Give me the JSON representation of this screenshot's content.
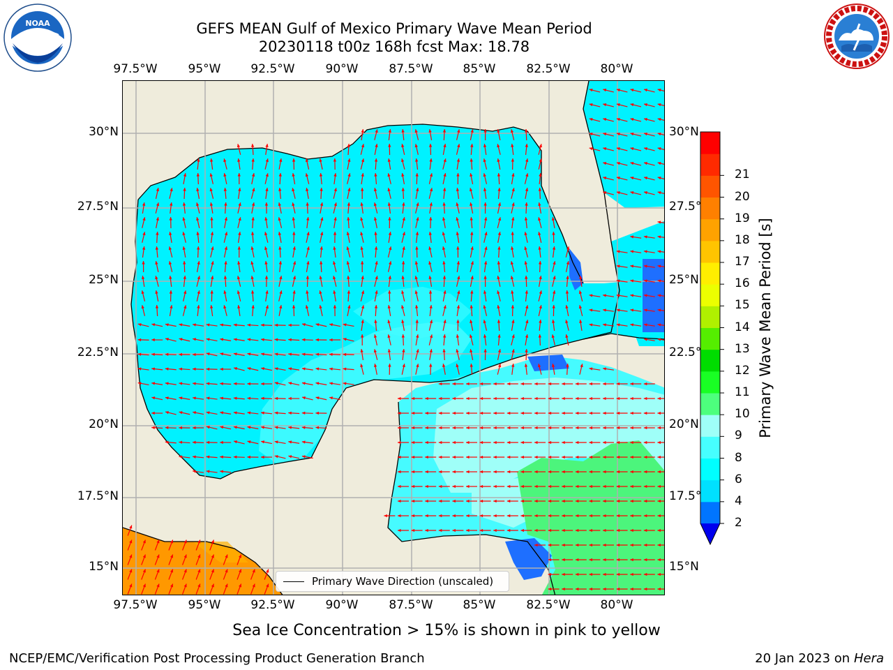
{
  "title_line1": "GEFS MEAN Gulf of Mexico Primary Wave Mean Period",
  "title_line2": "20230118 t00z 168h fcst   Max: 18.78",
  "lon_labels": [
    "97.5°W",
    "95°W",
    "92.5°W",
    "90°W",
    "87.5°W",
    "85°W",
    "82.5°W",
    "80°W"
  ],
  "lat_labels": [
    "30°N",
    "27.5°N",
    "25°N",
    "22.5°N",
    "20°N",
    "17.5°N",
    "15°N"
  ],
  "colorbar": {
    "label": "Primary Wave Mean Period [s]",
    "ticks": [
      "2",
      "4",
      "6",
      "8",
      "9",
      "10",
      "11",
      "12",
      "13",
      "14",
      "15",
      "16",
      "17",
      "18",
      "19",
      "20",
      "21"
    ],
    "colors": [
      "#0075ff",
      "#00e0ff",
      "#00ffff",
      "#46ffff",
      "#9ffff8",
      "#4dff7d",
      "#19ff24",
      "#00dd00",
      "#55ee00",
      "#b0f000",
      "#ecff00",
      "#ffee00",
      "#ffc400",
      "#ffa200",
      "#ff8000",
      "#ff5500",
      "#ff2a00",
      "#ff0000"
    ],
    "extend_min_color": "#0000ee"
  },
  "legend_text": "Primary Wave Direction (unscaled)",
  "footer_note": "Sea Ice Concentration > 15% is shown in pink to yellow",
  "credit_left": "NCEP/EMC/Verification Post Processing Product Generation Branch",
  "credit_right_prefix": "20 Jan 2023 on ",
  "credit_right_host": "Hera",
  "logos": {
    "left": "noaa-logo",
    "right": "national-weather-service-logo"
  },
  "colors": {
    "land": "#efecdc",
    "coast": "#000000",
    "grid": "#b0b0b0",
    "arrow": "#ff0000",
    "period_4_6": "#00f2ff",
    "period_6_8": "#46fbff",
    "period_8_9": "#9ffff8",
    "period_9_10": "#4cf57c",
    "period_17_18": "#ff9800",
    "period_2_4": "#1e6fff"
  }
}
